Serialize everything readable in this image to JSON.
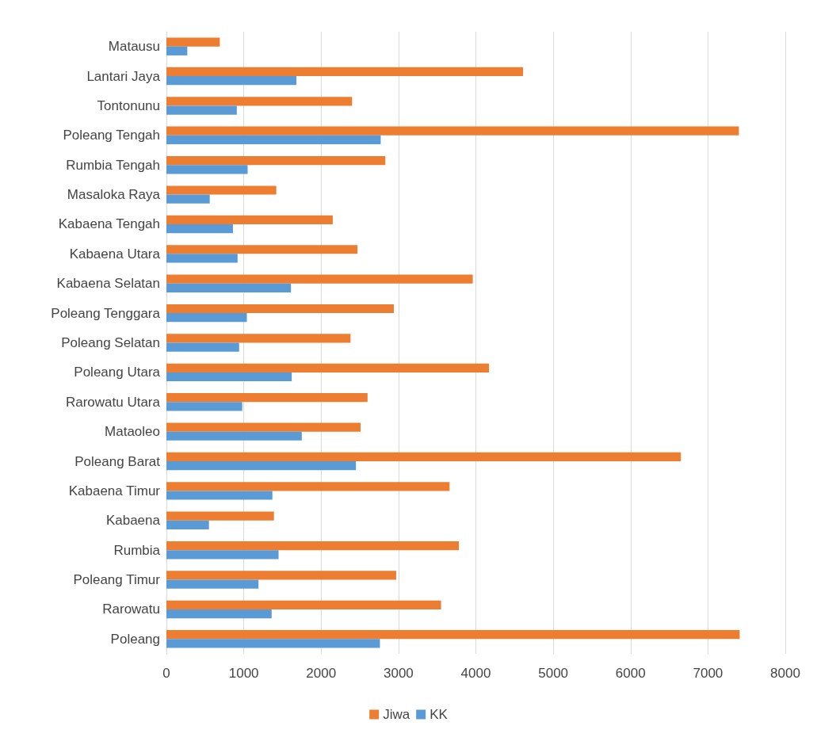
{
  "chart_data": {
    "type": "bar",
    "orientation": "horizontal",
    "categories": [
      "Matausu",
      "Lantari Jaya",
      "Tontonunu",
      "Poleang Tengah",
      "Rumbia Tengah",
      "Masaloka Raya",
      "Kabaena Tengah",
      "Kabaena Utara",
      "Kabaena Selatan",
      "Poleang Tenggara",
      "Poleang Selatan",
      "Poleang Utara",
      "Rarowatu Utara",
      "Mataoleo",
      "Poleang Barat",
      "Kabaena Timur",
      "Kabaena",
      "Rumbia",
      "Poleang Timur",
      "Rarowatu",
      "Poleang"
    ],
    "series": [
      {
        "name": "Jiwa",
        "color": "#ed7d31",
        "values": [
          690,
          4610,
          2400,
          7400,
          2830,
          1420,
          2150,
          2470,
          3960,
          2940,
          2380,
          4170,
          2600,
          2510,
          6650,
          3660,
          1390,
          3780,
          2970,
          3550,
          7410
        ]
      },
      {
        "name": "KK",
        "color": "#5b9bd5",
        "values": [
          270,
          1680,
          910,
          2770,
          1050,
          560,
          860,
          920,
          1610,
          1040,
          940,
          1620,
          980,
          1750,
          2450,
          1370,
          550,
          1450,
          1190,
          1360,
          2760
        ]
      }
    ],
    "xlim": [
      0,
      8000
    ],
    "xticks": [
      0,
      1000,
      2000,
      3000,
      4000,
      5000,
      6000,
      7000,
      8000
    ],
    "grid": "x",
    "legend": "bottom"
  }
}
